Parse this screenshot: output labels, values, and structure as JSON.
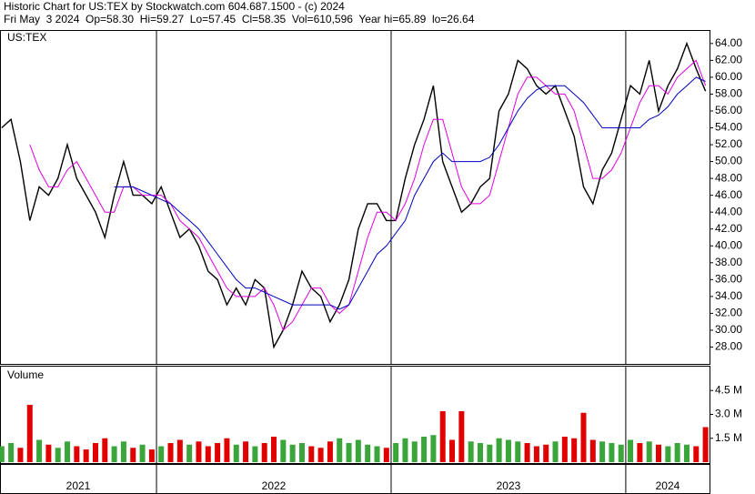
{
  "header": {
    "line1": "Historic Chart for US:TEX by Stockwatch.com 604.687.1500 - (c) 2024",
    "line2": "Fri May  3 2024  Op=58.30  Hi=59.27  Lo=57.45  Cl=58.35  Vol=610,596  Year hi=65.89  lo=26.64"
  },
  "chart_data": [
    {
      "type": "line",
      "symbol": "US:TEX",
      "x": [
        2021.34,
        2021.38,
        2021.42,
        2021.46,
        2021.5,
        2021.54,
        2021.58,
        2021.62,
        2021.66,
        2021.7,
        2021.74,
        2021.78,
        2021.82,
        2021.86,
        2021.9,
        2021.94,
        2021.98,
        2022.02,
        2022.06,
        2022.1,
        2022.14,
        2022.18,
        2022.22,
        2022.26,
        2022.3,
        2022.34,
        2022.38,
        2022.42,
        2022.46,
        2022.5,
        2022.54,
        2022.58,
        2022.62,
        2022.66,
        2022.7,
        2022.74,
        2022.78,
        2022.82,
        2022.86,
        2022.9,
        2022.94,
        2022.98,
        2023.02,
        2023.06,
        2023.1,
        2023.14,
        2023.18,
        2023.22,
        2023.26,
        2023.3,
        2023.34,
        2023.38,
        2023.42,
        2023.46,
        2023.5,
        2023.54,
        2023.58,
        2023.62,
        2023.66,
        2023.7,
        2023.74,
        2023.78,
        2023.82,
        2023.86,
        2023.9,
        2023.94,
        2023.98,
        2024.02,
        2024.06,
        2024.1,
        2024.14,
        2024.18,
        2024.22,
        2024.26,
        2024.3,
        2024.34
      ],
      "series": [
        {
          "color": "#000000",
          "values": [
            54,
            55,
            50,
            43,
            47,
            46,
            48,
            52,
            48,
            46,
            44,
            41,
            46,
            50,
            46,
            46,
            45,
            47,
            44,
            41,
            42,
            40,
            37,
            36,
            33,
            35,
            33,
            36,
            35,
            28,
            30,
            33,
            37,
            35,
            34,
            31,
            33,
            36,
            42,
            45,
            45,
            43,
            43,
            48,
            52,
            55,
            59,
            50,
            47,
            44,
            45,
            47,
            48,
            56,
            58,
            62,
            61,
            59,
            58,
            59,
            56,
            53,
            47,
            45,
            49,
            51,
            55,
            59,
            58,
            62,
            56,
            59,
            61,
            64,
            61,
            58.35
          ]
        },
        {
          "color": "#e000e0",
          "values": [
            null,
            null,
            null,
            52,
            49,
            47,
            47,
            49,
            50,
            48,
            46,
            44,
            44,
            47,
            47,
            46,
            46,
            46,
            45,
            43,
            42,
            41,
            39,
            37,
            35,
            34,
            34,
            34,
            35,
            33,
            30,
            31,
            33,
            35,
            35,
            33,
            32,
            33,
            37,
            41,
            44,
            44,
            43,
            45,
            48,
            52,
            55,
            55,
            51,
            47,
            45,
            45,
            46,
            50,
            54,
            58,
            60,
            60,
            59,
            58,
            58,
            56,
            52,
            48,
            48,
            49,
            51,
            54,
            57,
            59,
            59,
            58,
            60,
            61,
            62,
            59
          ]
        },
        {
          "color": "#0000c0",
          "values": [
            null,
            null,
            null,
            null,
            null,
            null,
            null,
            null,
            null,
            null,
            null,
            null,
            47,
            47,
            47,
            46.5,
            46,
            45.5,
            45,
            44,
            43,
            42,
            40.5,
            39,
            37.5,
            36,
            35,
            35,
            34.5,
            34,
            33.5,
            33,
            33,
            33,
            33,
            33,
            32.5,
            33,
            35,
            37,
            39,
            40,
            41.5,
            43,
            46,
            48,
            50,
            51,
            50,
            50,
            50,
            50,
            50.5,
            52,
            54,
            56,
            57.5,
            58.5,
            59,
            59,
            59,
            58,
            57,
            55.5,
            54,
            54,
            54,
            54,
            54,
            55,
            55.5,
            56.5,
            58,
            59,
            60,
            59.5
          ]
        }
      ],
      "xlim": [
        2021.333,
        2024.357
      ],
      "xticks": [
        2021,
        2022,
        2023,
        2024
      ],
      "ylim": [
        26,
        65.6
      ],
      "yticks": [
        {
          "value": 28,
          "label": "28.00"
        },
        {
          "value": 30,
          "label": "30.00"
        },
        {
          "value": 32,
          "label": "32.00"
        },
        {
          "value": 34,
          "label": "34.00"
        },
        {
          "value": 36,
          "label": "36.00"
        },
        {
          "value": 38,
          "label": "38.00"
        },
        {
          "value": 40,
          "label": "40.00"
        },
        {
          "value": 42,
          "label": "42.00"
        },
        {
          "value": 44,
          "label": "44.00"
        },
        {
          "value": 46,
          "label": "46.00"
        },
        {
          "value": 48,
          "label": "48.00"
        },
        {
          "value": 50,
          "label": "50.00"
        },
        {
          "value": 52,
          "label": "52.00"
        },
        {
          "value": 54,
          "label": "54.00"
        },
        {
          "value": 56,
          "label": "56.00"
        },
        {
          "value": 58,
          "label": "58.00"
        },
        {
          "value": 60,
          "label": "60.00"
        },
        {
          "value": 62,
          "label": "62.00"
        },
        {
          "value": 64,
          "label": "64.00"
        }
      ]
    },
    {
      "type": "bar",
      "title": "Volume",
      "up_color": "#3aa53a",
      "down_color": "#e00000",
      "values": [
        1.0,
        1.2,
        0.9,
        3.6,
        1.4,
        1.1,
        0.9,
        1.3,
        1.0,
        0.8,
        1.2,
        1.5,
        1.0,
        1.3,
        0.9,
        1.1,
        0.8,
        1.0,
        1.2,
        1.4,
        1.1,
        1.3,
        1.0,
        1.2,
        1.5,
        1.1,
        1.3,
        1.0,
        1.2,
        1.6,
        1.4,
        1.1,
        1.2,
        1.0,
        0.9,
        1.3,
        1.5,
        1.2,
        1.4,
        1.1,
        1.0,
        0.9,
        1.2,
        1.5,
        1.3,
        1.6,
        1.7,
        3.2,
        1.4,
        3.2,
        1.3,
        1.2,
        1.1,
        1.5,
        1.4,
        1.3,
        1.2,
        1.0,
        1.1,
        1.3,
        1.6,
        1.5,
        3.1,
        1.4,
        1.3,
        1.2,
        1.1,
        1.4,
        1.2,
        1.3,
        1.1,
        1.0,
        1.2,
        1.1,
        1.0,
        2.2
      ],
      "ylim": [
        0,
        6
      ],
      "yticks": [
        {
          "value": 1.5,
          "label": "1.5 M"
        },
        {
          "value": 3.0,
          "label": "3.0 M"
        },
        {
          "value": 4.5,
          "label": "4.5 M"
        }
      ]
    }
  ]
}
